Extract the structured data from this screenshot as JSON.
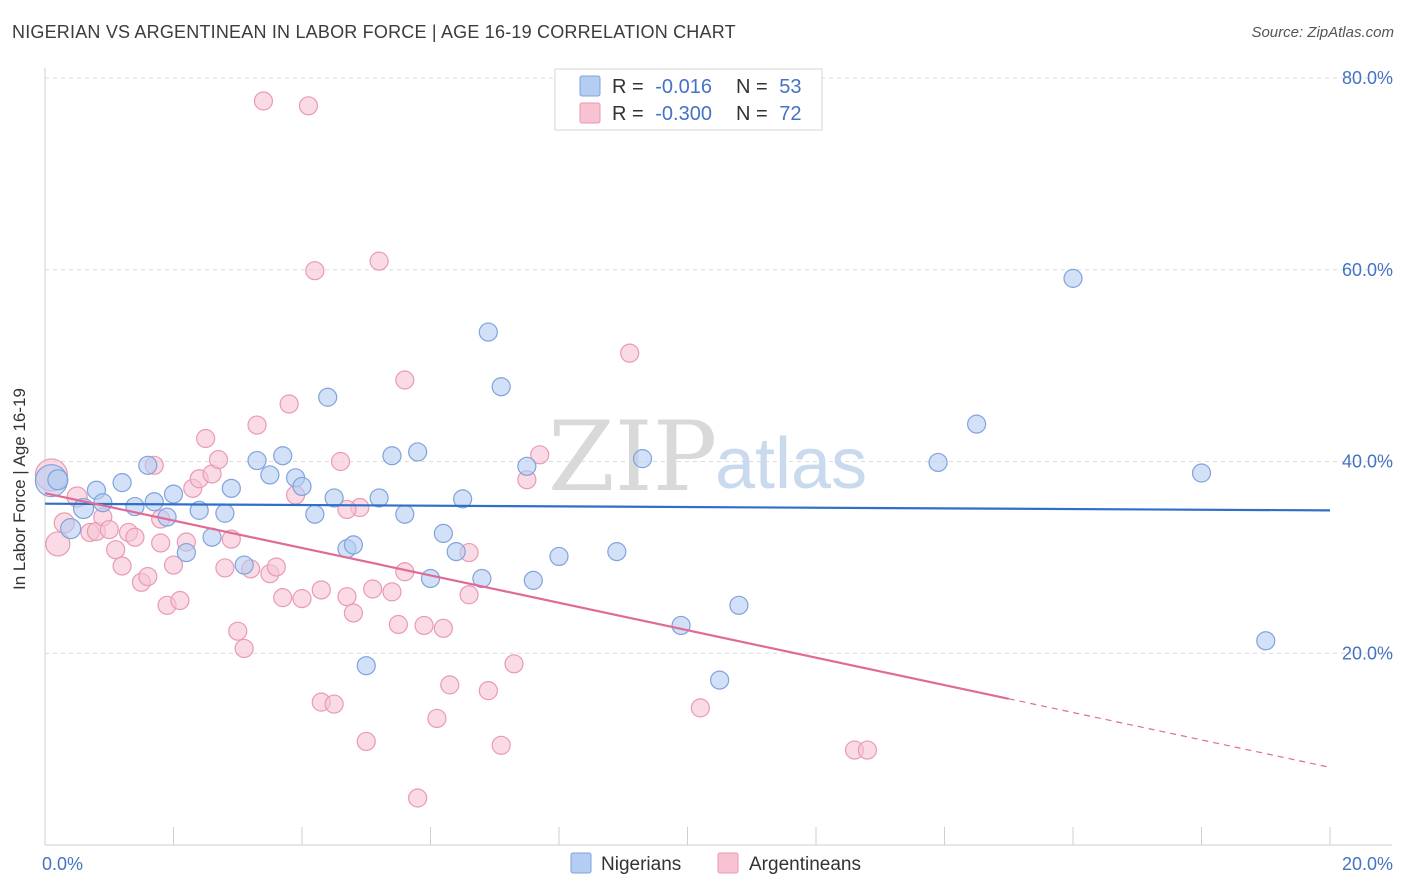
{
  "chart_data": {
    "type": "scatter",
    "title": "NIGERIAN VS ARGENTINEAN IN LABOR FORCE | AGE 16-19 CORRELATION CHART",
    "source": "Source: ZipAtlas.com",
    "xlabel": "",
    "ylabel": "In Labor Force | Age 16-19",
    "xlim": [
      0,
      20
    ],
    "ylim": [
      0,
      80
    ],
    "x_tick_labels": [
      "0.0%",
      "20.0%"
    ],
    "y_tick_labels": [
      "20.0%",
      "40.0%",
      "60.0%",
      "80.0%"
    ],
    "y_tick_values": [
      20,
      40,
      60,
      80
    ],
    "grid": true,
    "legend_placement": "top-center",
    "watermark": {
      "left": "ZIP",
      "right": "atlas"
    },
    "colors": {
      "nigerians_fill": "#b4cdf2",
      "nigerians_stroke": "#7fa3db",
      "nigerians_line": "#2f6fc7",
      "argentineans_fill": "#f7c3d3",
      "argentineans_stroke": "#e99ab3",
      "argentineans_line": "#e06b96",
      "tick_text": "#4472c4"
    },
    "series": [
      {
        "name": "Nigerians",
        "r_label": "R =",
        "r_value": "-0.016",
        "n_label": "N =",
        "n_value": "53",
        "trend": {
          "x0": 0.0,
          "y0": 35.6,
          "x1": 20.0,
          "y1": 34.9,
          "solid_to": 20.0
        },
        "points": [
          [
            0.1,
            38.0,
            16
          ],
          [
            0.2,
            38.1,
            10
          ],
          [
            0.4,
            33.0,
            10
          ],
          [
            0.6,
            35.1,
            10
          ],
          [
            0.8,
            37.0,
            9
          ],
          [
            0.9,
            35.7,
            9
          ],
          [
            1.2,
            37.8,
            9
          ],
          [
            1.4,
            35.3,
            9
          ],
          [
            1.6,
            39.6,
            9
          ],
          [
            1.7,
            35.8,
            9
          ],
          [
            1.9,
            34.2,
            9
          ],
          [
            2.0,
            36.6,
            9
          ],
          [
            2.2,
            30.5,
            9
          ],
          [
            2.4,
            34.9,
            9
          ],
          [
            2.6,
            32.1,
            9
          ],
          [
            2.8,
            34.6,
            9
          ],
          [
            2.9,
            37.2,
            9
          ],
          [
            3.1,
            29.2,
            9
          ],
          [
            3.3,
            40.1,
            9
          ],
          [
            3.5,
            38.6,
            9
          ],
          [
            3.7,
            40.6,
            9
          ],
          [
            3.9,
            38.3,
            9
          ],
          [
            4.0,
            37.4,
            9
          ],
          [
            4.2,
            34.5,
            9
          ],
          [
            4.4,
            46.7,
            9
          ],
          [
            4.5,
            36.2,
            9
          ],
          [
            4.7,
            30.9,
            9
          ],
          [
            4.8,
            31.3,
            9
          ],
          [
            5.0,
            18.7,
            9
          ],
          [
            5.2,
            36.2,
            9
          ],
          [
            5.4,
            40.6,
            9
          ],
          [
            5.6,
            34.5,
            9
          ],
          [
            5.8,
            41.0,
            9
          ],
          [
            6.0,
            27.8,
            9
          ],
          [
            6.2,
            32.5,
            9
          ],
          [
            6.4,
            30.6,
            9
          ],
          [
            6.5,
            36.1,
            9
          ],
          [
            6.8,
            27.8,
            9
          ],
          [
            6.9,
            53.5,
            9
          ],
          [
            7.1,
            47.8,
            9
          ],
          [
            7.5,
            39.5,
            9
          ],
          [
            7.6,
            27.6,
            9
          ],
          [
            8.0,
            30.1,
            9
          ],
          [
            8.9,
            30.6,
            9
          ],
          [
            9.3,
            40.3,
            9
          ],
          [
            9.9,
            22.9,
            9
          ],
          [
            10.5,
            17.2,
            9
          ],
          [
            10.8,
            25.0,
            9
          ],
          [
            13.9,
            39.9,
            9
          ],
          [
            14.5,
            43.9,
            9
          ],
          [
            16.0,
            59.1,
            9
          ],
          [
            18.0,
            38.8,
            9
          ],
          [
            19.0,
            21.3,
            9
          ]
        ]
      },
      {
        "name": "Argentineans",
        "r_label": "R =",
        "r_value": "-0.300",
        "n_label": "N =",
        "n_value": "72",
        "trend": {
          "x0": 0.0,
          "y0": 36.7,
          "x1": 20.0,
          "y1": 8.1,
          "solid_to": 15.0
        },
        "points": [
          [
            0.1,
            38.6,
            16
          ],
          [
            0.2,
            31.4,
            12
          ],
          [
            0.3,
            33.6,
            10
          ],
          [
            0.5,
            36.3,
            10
          ],
          [
            0.7,
            32.6,
            9
          ],
          [
            0.8,
            32.7,
            9
          ],
          [
            0.9,
            34.2,
            9
          ],
          [
            1.0,
            32.9,
            9
          ],
          [
            1.1,
            30.8,
            9
          ],
          [
            1.2,
            29.1,
            9
          ],
          [
            1.3,
            32.6,
            9
          ],
          [
            1.4,
            32.1,
            9
          ],
          [
            1.5,
            27.4,
            9
          ],
          [
            1.6,
            28.0,
            9
          ],
          [
            1.7,
            39.6,
            9
          ],
          [
            1.8,
            31.5,
            9
          ],
          [
            1.8,
            34.0,
            9
          ],
          [
            1.9,
            25.0,
            9
          ],
          [
            2.0,
            29.2,
            9
          ],
          [
            2.1,
            25.5,
            9
          ],
          [
            2.2,
            31.6,
            9
          ],
          [
            2.3,
            37.2,
            9
          ],
          [
            2.4,
            38.2,
            9
          ],
          [
            2.5,
            42.4,
            9
          ],
          [
            2.6,
            38.7,
            9
          ],
          [
            2.7,
            40.2,
            9
          ],
          [
            2.8,
            28.9,
            9
          ],
          [
            2.9,
            31.9,
            9
          ],
          [
            3.0,
            22.3,
            9
          ],
          [
            3.1,
            20.5,
            9
          ],
          [
            3.2,
            28.8,
            9
          ],
          [
            3.3,
            43.8,
            9
          ],
          [
            3.4,
            77.6,
            9
          ],
          [
            3.5,
            28.3,
            9
          ],
          [
            3.6,
            29.0,
            9
          ],
          [
            3.7,
            25.8,
            9
          ],
          [
            3.8,
            46.0,
            9
          ],
          [
            3.9,
            36.5,
            9
          ],
          [
            4.0,
            25.7,
            9
          ],
          [
            4.1,
            77.1,
            9
          ],
          [
            4.2,
            59.9,
            9
          ],
          [
            4.3,
            26.6,
            9
          ],
          [
            4.3,
            14.9,
            9
          ],
          [
            4.5,
            14.7,
            9
          ],
          [
            4.6,
            40.0,
            9
          ],
          [
            4.7,
            25.9,
            9
          ],
          [
            4.8,
            24.2,
            9
          ],
          [
            4.9,
            35.2,
            9
          ],
          [
            5.0,
            10.8,
            9
          ],
          [
            5.1,
            26.7,
            9
          ],
          [
            5.2,
            60.9,
            9
          ],
          [
            5.4,
            26.4,
            9
          ],
          [
            5.5,
            23.0,
            9
          ],
          [
            5.6,
            48.5,
            9
          ],
          [
            5.8,
            4.9,
            9
          ],
          [
            5.9,
            22.9,
            9
          ],
          [
            6.1,
            13.2,
            9
          ],
          [
            6.2,
            22.6,
            9
          ],
          [
            6.3,
            16.7,
            9
          ],
          [
            6.6,
            30.5,
            9
          ],
          [
            6.9,
            16.1,
            9
          ],
          [
            7.1,
            10.4,
            9
          ],
          [
            7.3,
            18.9,
            9
          ],
          [
            7.5,
            38.1,
            9
          ],
          [
            7.7,
            40.7,
            9
          ],
          [
            9.1,
            51.3,
            9
          ],
          [
            10.2,
            14.3,
            9
          ],
          [
            12.6,
            9.9,
            9
          ],
          [
            12.8,
            9.9,
            9
          ],
          [
            5.6,
            28.5,
            9
          ],
          [
            6.6,
            26.1,
            9
          ],
          [
            4.7,
            35.0,
            9
          ]
        ]
      }
    ]
  }
}
